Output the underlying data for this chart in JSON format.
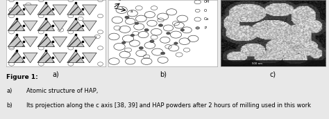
{
  "figure_label": "Figure 1:",
  "caption_a_label": "a)",
  "caption_a_text": "Atomic structure of HAP,",
  "caption_b_label": "b)",
  "caption_b_text": "Its projection along the c axis [38, 39] and HAP powders after 2 hours of milling used in this work",
  "panel_labels": [
    "a)",
    "b)",
    "c)"
  ],
  "background_color": "#e8e8e8",
  "panel_bg": "#ffffff",
  "text_color": "#000000",
  "figure_label_fontsize": 6.5,
  "caption_fontsize": 6.0
}
